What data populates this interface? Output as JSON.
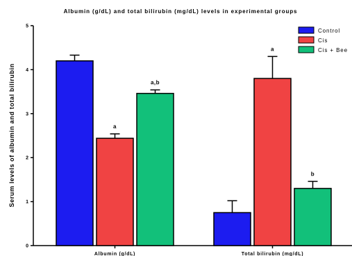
{
  "chart_data": {
    "type": "bar",
    "title": "Albumin (g/dL) and total bilirubin (mg/dL) levels in experimental groups",
    "ylabel": "Serum levels of albumin and total bilirubin",
    "xlabel": "",
    "ylim": [
      0,
      5
    ],
    "yticks": [
      "0",
      "1",
      "2",
      "3",
      "4",
      "5"
    ],
    "categories": [
      "Albumin (g/dL)",
      "Total bilirubin (mg/dL)"
    ],
    "series": [
      {
        "name": "Control",
        "color": "#1c1cf0",
        "values": [
          4.2,
          0.75
        ],
        "errors": [
          0.13,
          0.27
        ],
        "labels": [
          "",
          ""
        ]
      },
      {
        "name": "Cis",
        "color": "#f04343",
        "values": [
          2.44,
          3.8
        ],
        "errors": [
          0.1,
          0.5
        ],
        "labels": [
          "a",
          "a"
        ]
      },
      {
        "name": "Cis + Bee",
        "color": "#12c07a",
        "values": [
          3.46,
          1.3
        ],
        "errors": [
          0.08,
          0.16
        ],
        "labels": [
          "a,b",
          "b"
        ]
      }
    ],
    "legend": "top-right",
    "grid": false
  }
}
